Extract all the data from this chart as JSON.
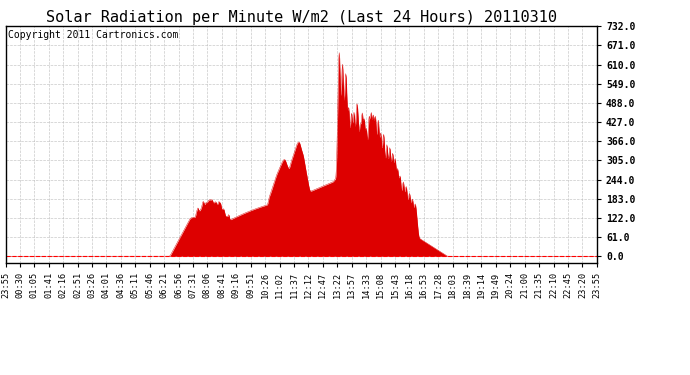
{
  "title": "Solar Radiation per Minute W/m2 (Last 24 Hours) 20110310",
  "copyright_text": "Copyright 2011 Cartronics.com",
  "yticks": [
    0.0,
    61.0,
    122.0,
    183.0,
    244.0,
    305.0,
    366.0,
    427.0,
    488.0,
    549.0,
    610.0,
    671.0,
    732.0
  ],
  "ymax": 732.0,
  "ymin": -20.0,
  "fill_color": "#dd0000",
  "line_color": "#dd0000",
  "background_color": "#ffffff",
  "grid_color": "#bbbbbb",
  "dashed_line_color": "#ff0000",
  "title_fontsize": 11,
  "copyright_fontsize": 7,
  "tick_labels": [
    "23:55",
    "00:30",
    "01:05",
    "01:41",
    "02:16",
    "02:51",
    "03:26",
    "04:01",
    "04:36",
    "05:11",
    "05:46",
    "06:21",
    "06:56",
    "07:31",
    "08:06",
    "08:41",
    "09:16",
    "09:51",
    "10:26",
    "11:02",
    "11:37",
    "12:12",
    "12:47",
    "13:22",
    "13:57",
    "14:33",
    "15:08",
    "15:43",
    "16:18",
    "16:53",
    "17:28",
    "18:03",
    "18:39",
    "19:14",
    "19:49",
    "20:24",
    "21:00",
    "21:35",
    "22:10",
    "22:45",
    "23:20",
    "23:55"
  ]
}
